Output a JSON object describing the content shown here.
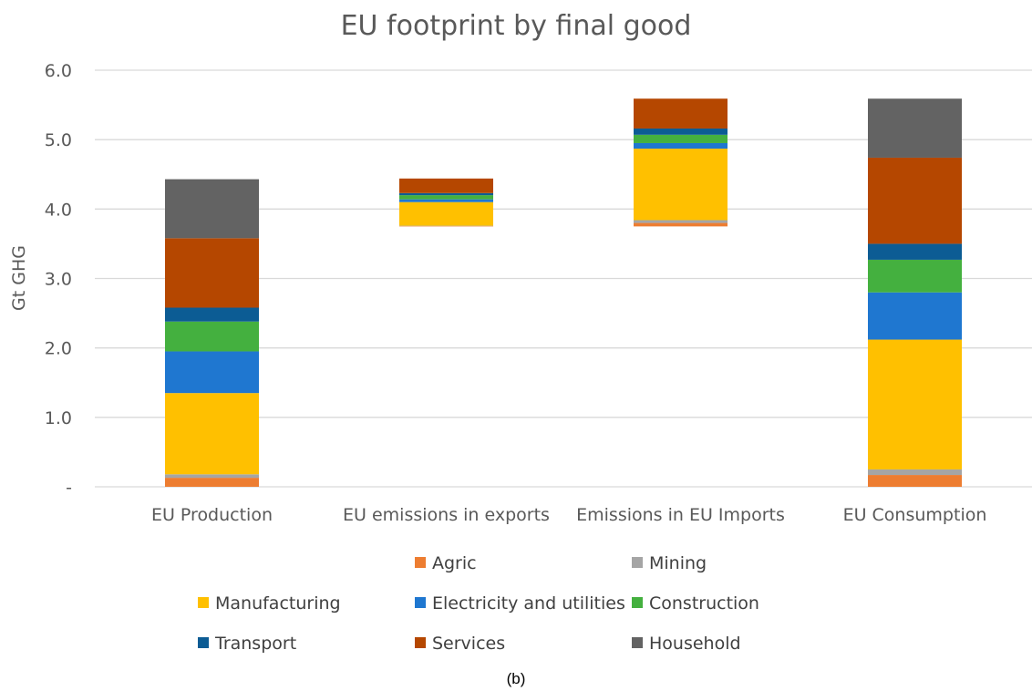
{
  "caption": "(b)",
  "chart_data": {
    "type": "waterfall-stacked-bar",
    "title": "EU footprint by final good",
    "xlabel": "",
    "ylabel": "Gt GHG",
    "ylim": [
      0,
      6
    ],
    "yticks": [
      {
        "value": 0,
        "label": "-"
      },
      {
        "value": 1,
        "label": "1.0"
      },
      {
        "value": 2,
        "label": "2.0"
      },
      {
        "value": 3,
        "label": "3.0"
      },
      {
        "value": 4,
        "label": "4.0"
      },
      {
        "value": 5,
        "label": "5.0"
      },
      {
        "value": 6,
        "label": "6.0"
      }
    ],
    "grid": true,
    "legend_position": "bottom",
    "categories": [
      "EU Production",
      "EU emissions in exports",
      "Emissions in EU Imports",
      "EU Consumption"
    ],
    "category_bases": [
      0,
      3.75,
      3.75,
      0
    ],
    "series": [
      {
        "name": "Agric",
        "color": "#ED7D31",
        "values": [
          0.13,
          0.005,
          0.05,
          0.17
        ]
      },
      {
        "name": "Mining",
        "color": "#A5A5A5",
        "values": [
          0.05,
          0.005,
          0.04,
          0.08
        ]
      },
      {
        "name": "Manufacturing",
        "color": "#FFC000",
        "values": [
          1.17,
          0.34,
          1.03,
          1.87
        ]
      },
      {
        "name": "Electricity and utilities",
        "color": "#1F77D0",
        "values": [
          0.6,
          0.04,
          0.08,
          0.68
        ]
      },
      {
        "name": "Construction",
        "color": "#44B03F",
        "values": [
          0.43,
          0.06,
          0.12,
          0.47
        ]
      },
      {
        "name": "Transport",
        "color": "#0C5C94",
        "values": [
          0.2,
          0.03,
          0.09,
          0.23
        ]
      },
      {
        "name": "Services",
        "color": "#B54700",
        "values": [
          1.0,
          0.21,
          0.43,
          1.24
        ]
      },
      {
        "name": "Household",
        "color": "#636363",
        "values": [
          0.85,
          0,
          0,
          0.85
        ]
      }
    ]
  }
}
